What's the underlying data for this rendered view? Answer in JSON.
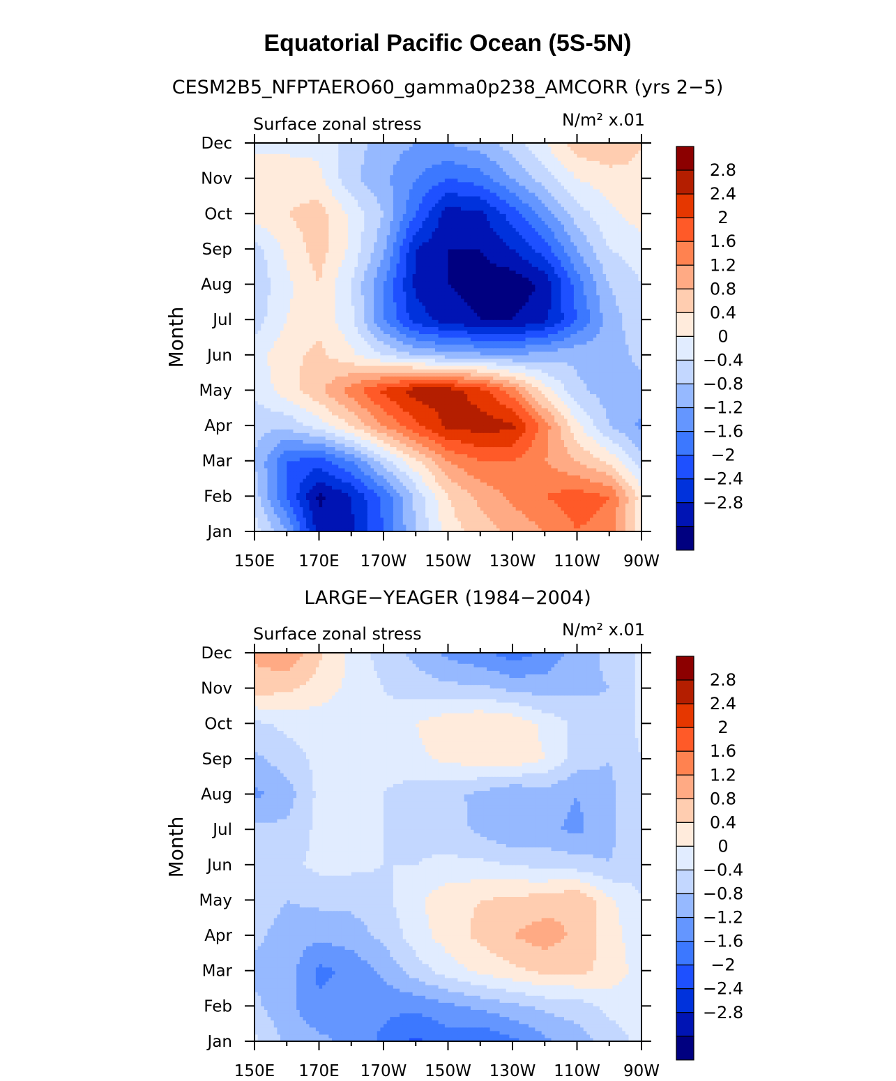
{
  "title": "Equatorial Pacific Ocean (5S-5N)",
  "colors": [
    "#000080",
    "#0014b4",
    "#0032dc",
    "#1e50ff",
    "#3c78ff",
    "#6496ff",
    "#96b9ff",
    "#c3d7ff",
    "#e1ecff",
    "#ffebdc",
    "#ffcdb0",
    "#ffaa84",
    "#ff8250",
    "#ff5a28",
    "#e63700",
    "#b41e00",
    "#8c0000"
  ],
  "colorbar_labels": [
    "2.8",
    "2.4",
    "2",
    "1.6",
    "1.2",
    "0.8",
    "0.4",
    "0",
    "−0.4",
    "−0.8",
    "−1.2",
    "−1.6",
    "−2",
    "−2.4",
    "−2.8"
  ],
  "chart_data": [
    {
      "type": "heatmap",
      "title": "CESM2B5_NFPTAERO60_gamma0p238_AMCORR (yrs 2−5)",
      "left_label": "Surface zonal stress",
      "right_label": "N/m² x.01",
      "ylabel": "Month",
      "xticks": [
        "150E",
        "170E",
        "170W",
        "150W",
        "130W",
        "110W",
        "90W"
      ],
      "yticks": [
        "Jan",
        "Feb",
        "Mar",
        "Apr",
        "May",
        "Jun",
        "Jul",
        "Aug",
        "Sep",
        "Oct",
        "Nov",
        "Dec"
      ],
      "levels": [
        -2.8,
        -2.4,
        -2.0,
        -1.6,
        -1.2,
        -0.8,
        -0.4,
        0,
        0.4,
        0.8,
        1.2,
        1.6,
        2.0,
        2.4,
        2.8
      ],
      "xlim": [
        150,
        270
      ],
      "ylim": [
        1,
        12
      ],
      "lon": [
        150,
        160,
        170,
        180,
        190,
        200,
        210,
        220,
        230,
        240,
        250,
        260,
        270
      ],
      "values": [
        [
          0.2,
          -0.8,
          -2.6,
          -2.5,
          -1.6,
          -0.4,
          0.6,
          1.0,
          1.3,
          1.6,
          2.0,
          1.8,
          0.5
        ],
        [
          -0.2,
          -1.6,
          -2.9,
          -2.4,
          -1.5,
          -0.3,
          0.8,
          1.3,
          1.7,
          2.0,
          2.2,
          2.0,
          0.6
        ],
        [
          -0.4,
          -1.6,
          -1.8,
          -1.2,
          -0.2,
          0.7,
          1.6,
          2.0,
          2.0,
          1.6,
          1.2,
          0.7,
          -0.2
        ],
        [
          -0.3,
          -0.3,
          0.2,
          0.8,
          1.6,
          2.3,
          2.9,
          3.0,
          2.9,
          1.8,
          0.5,
          -0.4,
          -0.9
        ],
        [
          0.1,
          0.6,
          1.1,
          1.8,
          2.5,
          3.0,
          3.0,
          2.6,
          1.8,
          0.6,
          -0.3,
          -0.6,
          -0.5
        ],
        [
          0.2,
          0.7,
          0.9,
          0.5,
          0.0,
          -0.4,
          -0.6,
          -0.7,
          -0.8,
          -0.6,
          -0.5,
          -0.6,
          -0.3
        ],
        [
          -0.2,
          0.4,
          0.7,
          0.1,
          -1.2,
          -2.2,
          -2.6,
          -2.8,
          -2.8,
          -2.5,
          -1.6,
          -0.6,
          -0.1
        ],
        [
          -0.3,
          0.3,
          0.8,
          0.0,
          -1.2,
          -2.5,
          -2.8,
          -3.0,
          -3.1,
          -2.7,
          -1.4,
          -0.4,
          0.0
        ],
        [
          -0.2,
          0.5,
          1.0,
          0.3,
          -0.7,
          -2.4,
          -2.8,
          -2.8,
          -2.4,
          -1.8,
          -0.8,
          0.0,
          0.2
        ],
        [
          0.6,
          0.8,
          1.0,
          0.3,
          -0.4,
          -1.6,
          -2.6,
          -2.5,
          -1.8,
          -1.0,
          -0.2,
          0.3,
          0.6
        ],
        [
          0.6,
          0.6,
          0.5,
          -0.3,
          -0.7,
          -1.2,
          -1.6,
          -1.4,
          -0.8,
          -0.2,
          0.4,
          0.6,
          0.7
        ],
        [
          0.3,
          0.3,
          0.3,
          -0.2,
          -0.6,
          -0.8,
          -0.8,
          -0.6,
          -0.2,
          0.4,
          1.0,
          1.2,
          0.8
        ]
      ]
    },
    {
      "type": "heatmap",
      "title": "LARGE−YEAGER (1984−2004)",
      "left_label": "Surface zonal stress",
      "right_label": "N/m² x.01",
      "ylabel": "Month",
      "xticks": [
        "150E",
        "170E",
        "170W",
        "150W",
        "130W",
        "110W",
        "90W"
      ],
      "yticks": [
        "Jan",
        "Feb",
        "Mar",
        "Apr",
        "May",
        "Jun",
        "Jul",
        "Aug",
        "Sep",
        "Oct",
        "Nov",
        "Dec"
      ],
      "levels": [
        -2.8,
        -2.4,
        -2.0,
        -1.6,
        -1.2,
        -0.8,
        -0.4,
        0,
        0.4,
        0.8,
        1.2,
        1.6,
        2.0,
        2.4,
        2.8
      ],
      "xlim": [
        150,
        270
      ],
      "ylim": [
        1,
        12
      ],
      "lon": [
        150,
        160,
        170,
        180,
        190,
        200,
        210,
        220,
        230,
        240,
        250,
        260,
        270
      ],
      "values": [
        [
          0.1,
          -0.5,
          -0.7,
          -0.9,
          -1.3,
          -1.7,
          -1.4,
          -1.6,
          -1.3,
          -0.9,
          -0.6,
          -0.2,
          0.1
        ],
        [
          -0.3,
          -0.7,
          -1.1,
          -1.0,
          -1.1,
          -1.1,
          -0.9,
          -0.7,
          -0.5,
          -0.3,
          -0.2,
          0.1,
          0.2
        ],
        [
          -0.5,
          -0.6,
          -1.3,
          -1.1,
          -0.7,
          -0.2,
          0.2,
          0.5,
          0.7,
          0.9,
          0.9,
          0.7,
          0.2
        ],
        [
          -0.3,
          -0.6,
          -0.7,
          -0.6,
          -0.3,
          0.2,
          0.6,
          0.9,
          1.2,
          1.4,
          1.1,
          0.6,
          0.1
        ],
        [
          -0.1,
          -0.4,
          -0.3,
          -0.3,
          -0.1,
          0.3,
          0.7,
          0.8,
          0.9,
          1.0,
          1.2,
          0.5,
          0.0
        ],
        [
          -0.1,
          -0.1,
          0.1,
          0.1,
          0.0,
          0.0,
          0.1,
          0.1,
          0.0,
          -0.1,
          -0.2,
          -0.4,
          -0.1
        ],
        [
          -0.3,
          -0.3,
          0.1,
          0.1,
          0.0,
          -0.1,
          -0.2,
          -0.5,
          -0.8,
          -0.7,
          -0.9,
          -0.5,
          -0.1
        ],
        [
          -0.9,
          -0.6,
          0.1,
          0.1,
          0.0,
          -0.2,
          -0.3,
          -0.5,
          -0.8,
          -0.6,
          -0.8,
          -0.5,
          -0.1
        ],
        [
          -0.5,
          -0.2,
          0.1,
          0.1,
          0.1,
          0.3,
          0.5,
          0.6,
          0.7,
          0.4,
          -0.2,
          -0.4,
          0.0
        ],
        [
          -0.1,
          0.1,
          0.2,
          0.2,
          0.1,
          0.4,
          0.7,
          0.8,
          0.7,
          0.3,
          -0.1,
          -0.3,
          0.1
        ],
        [
          1.0,
          0.9,
          0.6,
          0.3,
          0.0,
          -0.2,
          -0.3,
          -0.3,
          -0.5,
          -0.6,
          -0.5,
          -0.4,
          0.1
        ],
        [
          1.3,
          1.5,
          0.9,
          0.3,
          -0.2,
          -0.5,
          -0.9,
          -1.1,
          -1.4,
          -1.1,
          -0.6,
          -0.3,
          0.1
        ]
      ]
    }
  ]
}
